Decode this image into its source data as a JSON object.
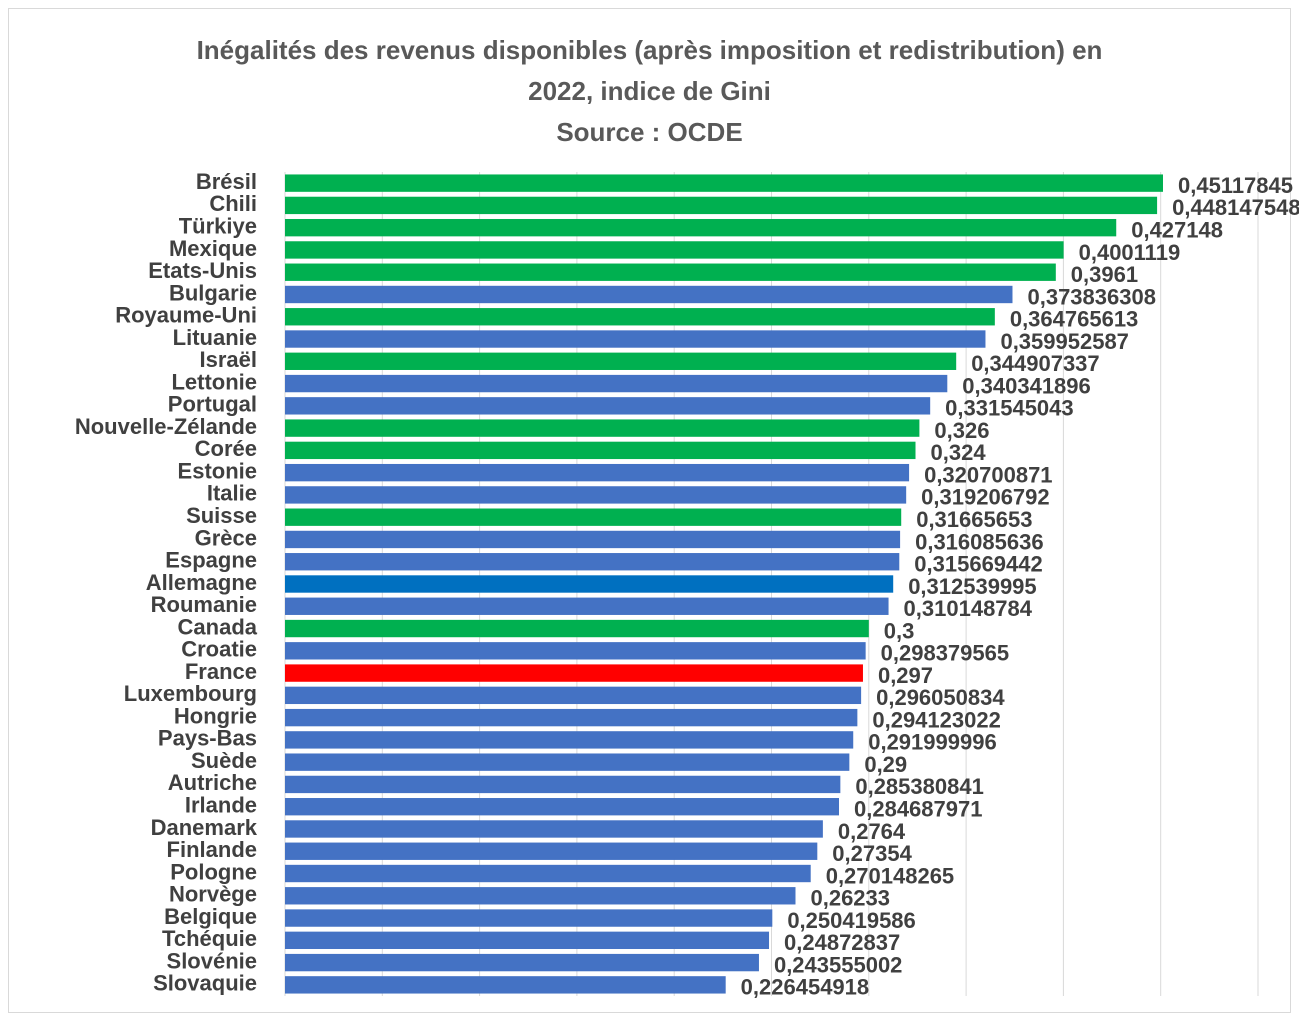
{
  "chart_data": {
    "type": "bar",
    "orientation": "horizontal",
    "title_lines": [
      "Inégalités des revenus disponibles (après imposition et redistribution) en",
      "2022, indice de Gini",
      "Source : OCDE"
    ],
    "xlabel": "",
    "ylabel": "",
    "xlim": [
      0,
      0.5
    ],
    "grid": "vertical",
    "legend": "none",
    "colors": {
      "green": "#00b050",
      "blue": "#4472c4",
      "dark_blue": "#0070c0",
      "red": "#ff0000"
    },
    "bars": [
      {
        "category": "Brésil",
        "value": 0.45117845,
        "label": "0,45117845",
        "color": "green"
      },
      {
        "category": "Chili",
        "value": 0.448147548,
        "label": "0,448147548",
        "color": "green"
      },
      {
        "category": "Türkiye",
        "value": 0.427148,
        "label": "0,427148",
        "color": "green"
      },
      {
        "category": "Mexique",
        "value": 0.4001119,
        "label": "0,4001119",
        "color": "green"
      },
      {
        "category": "Etats-Unis",
        "value": 0.3961,
        "label": "0,3961",
        "color": "green"
      },
      {
        "category": "Bulgarie",
        "value": 0.373836308,
        "label": "0,373836308",
        "color": "blue"
      },
      {
        "category": "Royaume-Uni",
        "value": 0.364765613,
        "label": "0,364765613",
        "color": "green"
      },
      {
        "category": "Lituanie",
        "value": 0.359952587,
        "label": "0,359952587",
        "color": "blue"
      },
      {
        "category": "Israël",
        "value": 0.344907337,
        "label": "0,344907337",
        "color": "green"
      },
      {
        "category": "Lettonie",
        "value": 0.340341896,
        "label": "0,340341896",
        "color": "blue"
      },
      {
        "category": "Portugal",
        "value": 0.331545043,
        "label": "0,331545043",
        "color": "blue"
      },
      {
        "category": "Nouvelle-Zélande",
        "value": 0.326,
        "label": "0,326",
        "color": "green"
      },
      {
        "category": "Corée",
        "value": 0.324,
        "label": "0,324",
        "color": "green"
      },
      {
        "category": "Estonie",
        "value": 0.320700871,
        "label": "0,320700871",
        "color": "blue"
      },
      {
        "category": "Italie",
        "value": 0.319206792,
        "label": "0,319206792",
        "color": "blue"
      },
      {
        "category": "Suisse",
        "value": 0.31665653,
        "label": "0,31665653",
        "color": "green"
      },
      {
        "category": "Grèce",
        "value": 0.316085636,
        "label": "0,316085636",
        "color": "blue"
      },
      {
        "category": "Espagne",
        "value": 0.315669442,
        "label": "0,315669442",
        "color": "blue"
      },
      {
        "category": "Allemagne",
        "value": 0.312539995,
        "label": "0,312539995",
        "color": "dark_blue"
      },
      {
        "category": "Roumanie",
        "value": 0.310148784,
        "label": "0,310148784",
        "color": "blue"
      },
      {
        "category": "Canada",
        "value": 0.3,
        "label": "0,3",
        "color": "green"
      },
      {
        "category": "Croatie",
        "value": 0.298379565,
        "label": "0,298379565",
        "color": "blue"
      },
      {
        "category": "France",
        "value": 0.297,
        "label": "0,297",
        "color": "red"
      },
      {
        "category": "Luxembourg",
        "value": 0.296050834,
        "label": "0,296050834",
        "color": "blue"
      },
      {
        "category": "Hongrie",
        "value": 0.294123022,
        "label": "0,294123022",
        "color": "blue"
      },
      {
        "category": "Pays-Bas",
        "value": 0.291999996,
        "label": "0,291999996",
        "color": "blue"
      },
      {
        "category": "Suède",
        "value": 0.29,
        "label": "0,29",
        "color": "blue"
      },
      {
        "category": "Autriche",
        "value": 0.285380841,
        "label": "0,285380841",
        "color": "blue"
      },
      {
        "category": "Irlande",
        "value": 0.284687971,
        "label": "0,284687971",
        "color": "blue"
      },
      {
        "category": "Danemark",
        "value": 0.2764,
        "label": "0,2764",
        "color": "blue"
      },
      {
        "category": "Finlande",
        "value": 0.27354,
        "label": "0,27354",
        "color": "blue"
      },
      {
        "category": "Pologne",
        "value": 0.270148265,
        "label": "0,270148265",
        "color": "blue"
      },
      {
        "category": "Norvège",
        "value": 0.26233,
        "label": "0,26233",
        "color": "blue"
      },
      {
        "category": "Belgique",
        "value": 0.250419586,
        "label": "0,250419586",
        "color": "blue"
      },
      {
        "category": "Tchéquie",
        "value": 0.24872837,
        "label": "0,24872837",
        "color": "blue"
      },
      {
        "category": "Slovénie",
        "value": 0.243555002,
        "label": "0,243555002",
        "color": "blue"
      },
      {
        "category": "Slovaquie",
        "value": 0.226454918,
        "label": "0,226454918",
        "color": "blue"
      }
    ]
  }
}
